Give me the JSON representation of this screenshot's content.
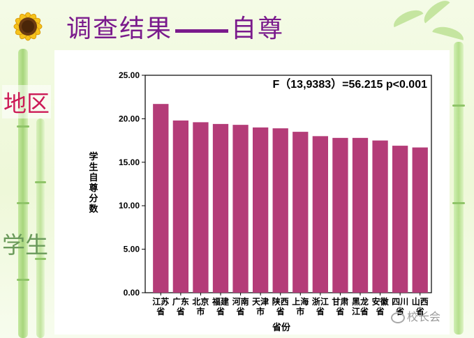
{
  "slide": {
    "title_part1": "调查结果",
    "title_part2": "自尊",
    "side_label_region": "地区",
    "side_label_student": "学生",
    "watermark": "校长会"
  },
  "chart_data": {
    "type": "bar",
    "annotation": "F（13,9383）=56.215   p<0.001",
    "xlabel": "省份",
    "ylabel": "学生自尊分数",
    "ylim": [
      0,
      25
    ],
    "yticks": [
      "0.00",
      "5.00",
      "10.00",
      "15.00",
      "20.00",
      "25.00"
    ],
    "grid": false,
    "bar_color": "#b43c78",
    "categories": [
      [
        "江苏",
        "省"
      ],
      [
        "广东",
        "省"
      ],
      [
        "北京",
        "市"
      ],
      [
        "福建",
        "省"
      ],
      [
        "河南",
        "省"
      ],
      [
        "天津",
        "市"
      ],
      [
        "陕西",
        "省"
      ],
      [
        "上海",
        "市"
      ],
      [
        "浙江",
        "省"
      ],
      [
        "甘肃",
        "省"
      ],
      [
        "黑龙",
        "江省"
      ],
      [
        "安徽",
        "省"
      ],
      [
        "四川",
        "省"
      ],
      [
        "山西",
        "省"
      ]
    ],
    "values": [
      21.7,
      19.8,
      19.6,
      19.4,
      19.3,
      19.0,
      18.9,
      18.5,
      18.0,
      17.8,
      17.8,
      17.5,
      16.9,
      16.7
    ]
  }
}
